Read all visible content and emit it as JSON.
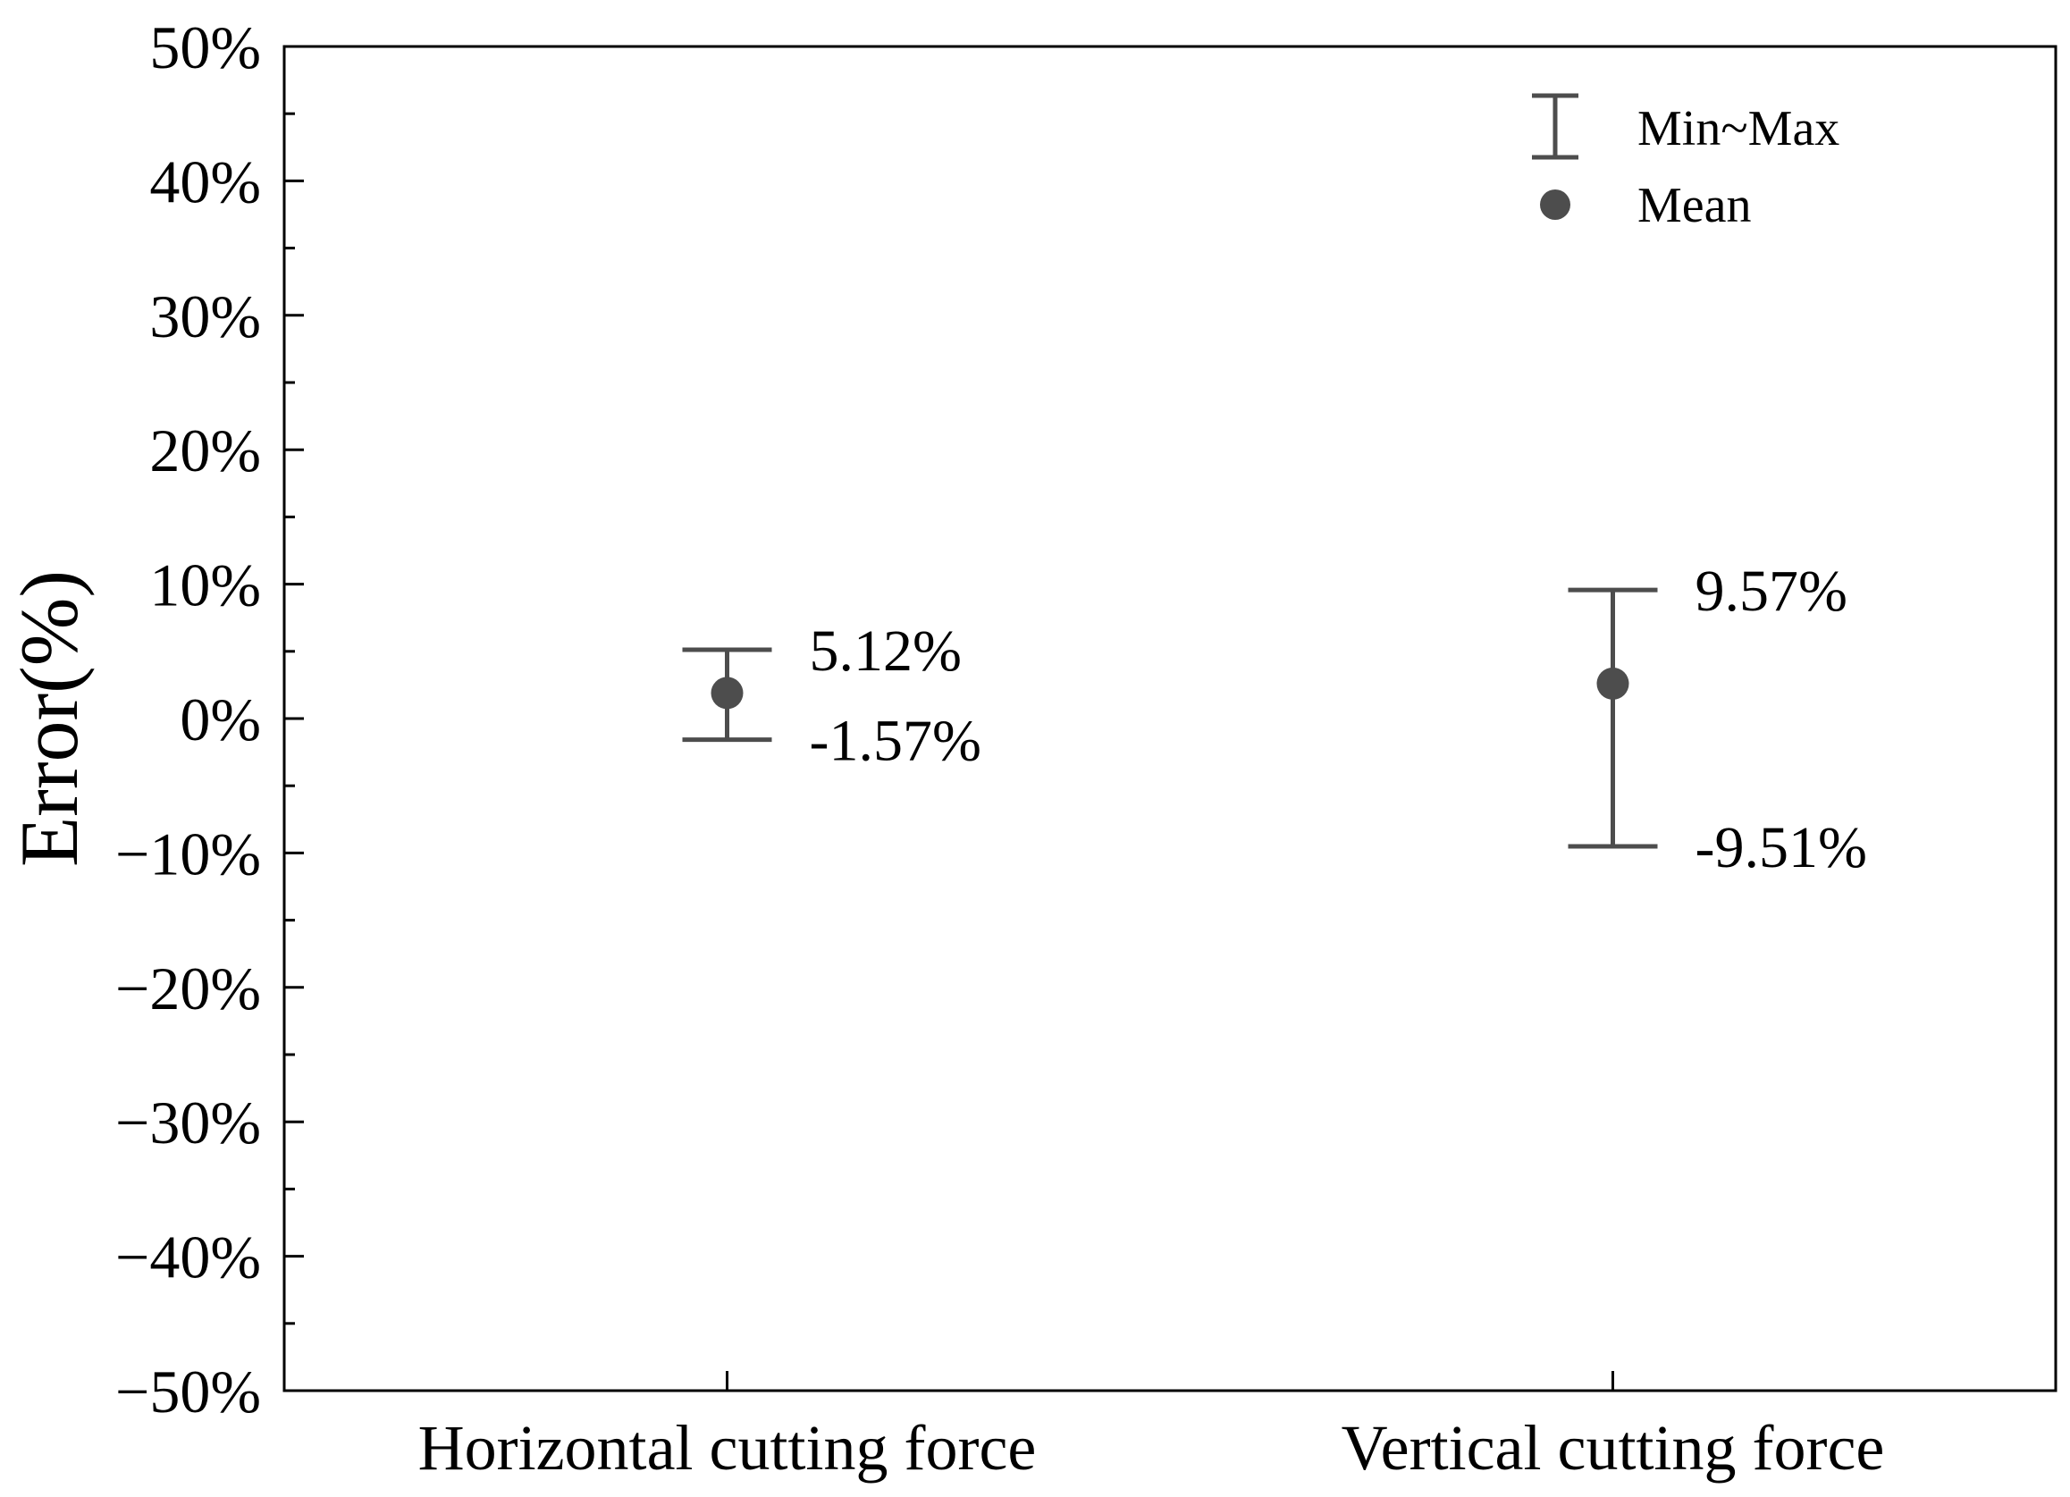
{
  "chart_data": {
    "type": "errorbar",
    "title": "",
    "xlabel": "",
    "ylabel": "Error(%)",
    "ylim": [
      -50,
      50
    ],
    "yticks": [
      50,
      40,
      30,
      20,
      10,
      0,
      -10,
      -20,
      -30,
      -40,
      -50
    ],
    "ytick_labels": [
      "50%",
      "40%",
      "30%",
      "20%",
      "10%",
      "0%",
      "−10%",
      "−20%",
      "−30%",
      "−40%",
      "−50%"
    ],
    "categories": [
      "Horizontal cutting force",
      "Vertical cutting force"
    ],
    "series": [
      {
        "name": "Min~Max",
        "min": [
          -1.57,
          -9.51
        ],
        "max": [
          5.12,
          9.57
        ]
      },
      {
        "name": "Mean",
        "values": [
          1.9,
          2.6
        ]
      }
    ],
    "annotations": {
      "max_labels": [
        "5.12%",
        "9.57%"
      ],
      "min_labels": [
        "-1.57%",
        "-9.51%"
      ]
    },
    "legend": {
      "placement": "top-right",
      "items": [
        {
          "name": "Min~Max",
          "marker": "errorbar"
        },
        {
          "name": "Mean",
          "marker": "circle"
        }
      ]
    },
    "colors": {
      "marker": "#4d4d4d",
      "axis": "#000000"
    }
  }
}
